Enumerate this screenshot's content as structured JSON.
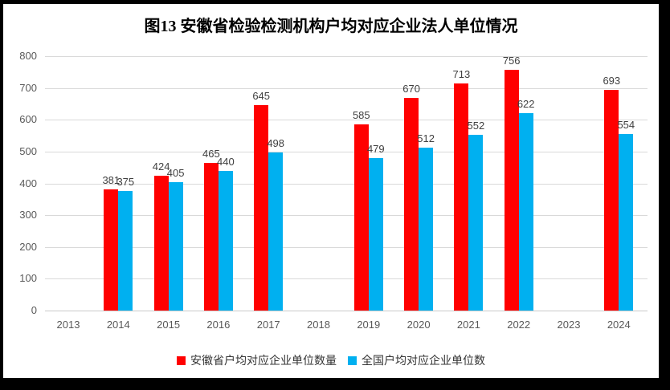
{
  "title": "图13  安徽省检验检测机构户均对应企业法人单位情况",
  "chart_data": {
    "type": "bar",
    "title": "图13  安徽省检验检测机构户均对应企业法人单位情况",
    "categories": [
      "2013",
      "2014",
      "2015",
      "2016",
      "2017",
      "2018",
      "2019",
      "2020",
      "2021",
      "2022",
      "2023",
      "2024"
    ],
    "series": [
      {
        "name": "安徽省户均对应企业单位数量",
        "color": "#ff0000",
        "values": [
          null,
          381,
          424,
          465,
          645,
          null,
          585,
          670,
          713,
          756,
          null,
          693
        ]
      },
      {
        "name": "全国户均对应企业单位数",
        "color": "#00b0f0",
        "values": [
          null,
          375,
          405,
          440,
          498,
          null,
          479,
          512,
          552,
          622,
          null,
          554
        ]
      }
    ],
    "ylim": [
      0,
      800
    ],
    "yticks": [
      0,
      100,
      200,
      300,
      400,
      500,
      600,
      700,
      800
    ],
    "grid": "horizontal",
    "legend_position": "bottom",
    "data_labels": "outside-end",
    "colors": {
      "gridline": "#d9d9d9",
      "axis_label": "#595959",
      "data_label": "#404040",
      "frame_border": "#000000"
    }
  }
}
